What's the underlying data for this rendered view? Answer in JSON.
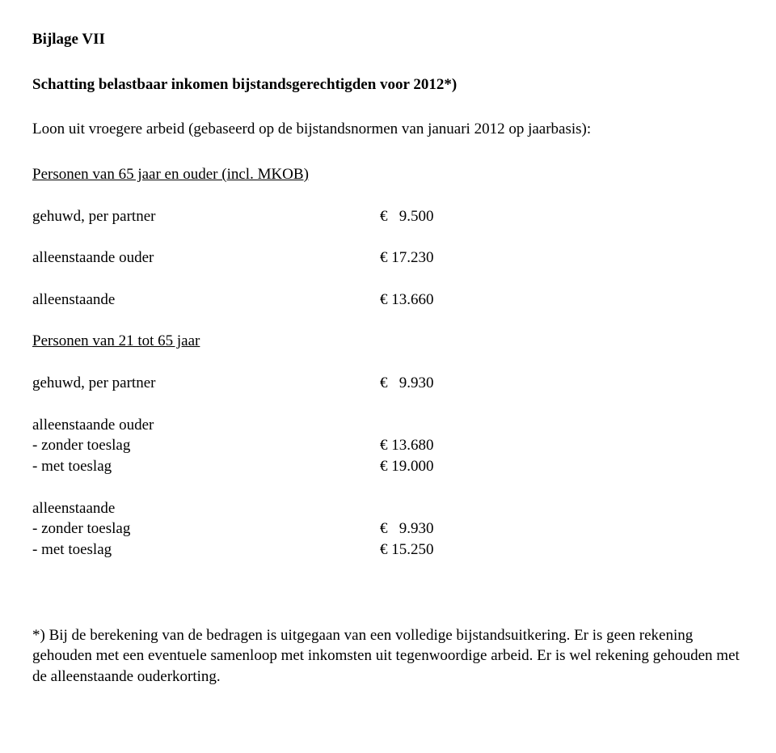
{
  "colors": {
    "text": "#000000",
    "background": "#ffffff"
  },
  "typography": {
    "family": "Times New Roman",
    "base_size_pt": 14,
    "bold_weight": 700
  },
  "title": "Bijlage VII",
  "subtitle": "Schatting belastbaar inkomen bijstandsgerechtigden voor 2012*)",
  "intro": "Loon uit vroegere arbeid (gebaseerd op de bijstandsnormen van januari 2012 op jaarbasis):",
  "group1": {
    "heading": "Personen van 65 jaar en ouder (incl. MKOB)",
    "rows": [
      {
        "label": "gehuwd, per partner",
        "value": "€   9.500"
      },
      {
        "label": "alleenstaande ouder",
        "value": "€ 17.230"
      },
      {
        "label": "alleenstaande",
        "value": "€ 13.660"
      }
    ]
  },
  "group2": {
    "heading": "Personen van 21 tot 65 jaar",
    "row1": {
      "label": "gehuwd, per partner",
      "value": "€   9.930"
    },
    "sub1": {
      "heading": "alleenstaande ouder",
      "rows": [
        {
          "label": "- zonder toeslag",
          "value": "€ 13.680"
        },
        {
          "label": "- met toeslag",
          "value": "€ 19.000"
        }
      ]
    },
    "sub2": {
      "heading": "alleenstaande",
      "rows": [
        {
          "label": "- zonder toeslag",
          "value": "€   9.930"
        },
        {
          "label": "- met toeslag",
          "value": "€ 15.250"
        }
      ]
    }
  },
  "footnote": "*) Bij de berekening van de bedragen is uitgegaan van een volledige bijstandsuitkering. Er is geen rekening gehouden met een eventuele samenloop met inkomsten uit tegenwoordige arbeid. Er is wel rekening gehouden met de alleenstaande ouderkorting."
}
